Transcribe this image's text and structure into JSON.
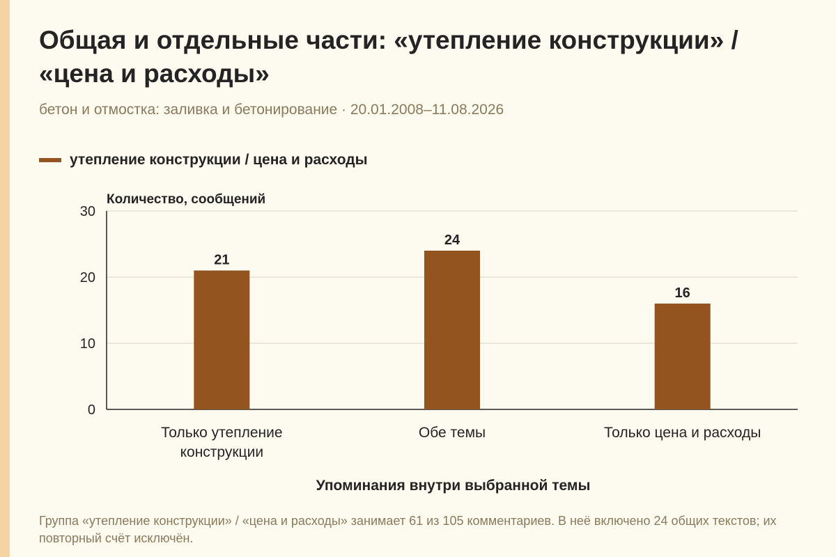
{
  "colors": {
    "background": "#fdfaf0",
    "accent_strip": "#f5d3a3",
    "bar": "#93541f",
    "text": "#242424",
    "muted_text": "#8a7a5c",
    "grid": "#d9d4c7"
  },
  "header": {
    "title": "Общая и отдельные части: «утепление конструкции» / «цена и расходы»",
    "subtitle": "бетон и отмостка: заливка и бетонирование · 20.01.2008–11.08.2026"
  },
  "footnote": "Группа «утепление конструкции» / «цена и расходы» занимает 61 из 105 комментариев. В неё включено 24 общих текстов; их повторный счёт исключён.",
  "chart_data": {
    "type": "bar",
    "categories": [
      [
        "Только утепление",
        "конструкции"
      ],
      [
        "Обе темы"
      ],
      [
        "Только цена и расходы"
      ]
    ],
    "series": [
      {
        "name": "утепление конструкции / цена и расходы",
        "values": [
          21,
          24,
          16
        ]
      }
    ],
    "data_labels": [
      "21",
      "24",
      "16"
    ],
    "ylabel": "Количество, сообщений",
    "xlabel": "Упоминания внутри выбранной темы",
    "ylim": [
      0,
      30
    ],
    "yticks": [
      0,
      10,
      20,
      30
    ],
    "grid": true,
    "legend_position": "top-left"
  }
}
